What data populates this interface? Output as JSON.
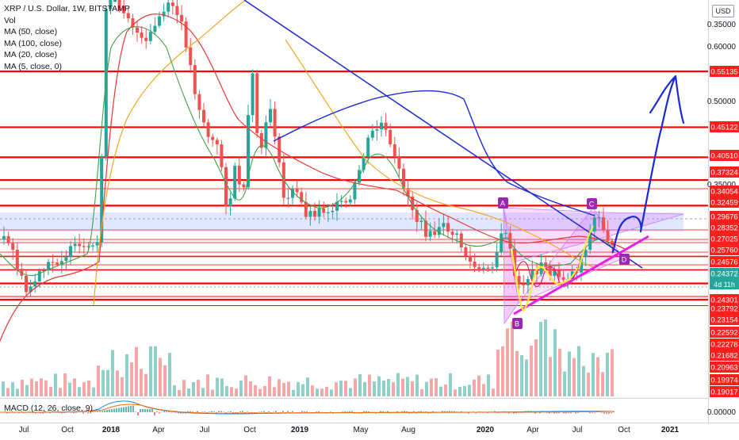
{
  "legend": {
    "title": "XRP / U.S. Dollar, 1W, BITSTAMP",
    "vol": "Vol",
    "ma50": "MA (50, close)",
    "ma100": "MA (100, close)",
    "ma20": "MA (20, close)",
    "ma5": "MA (5, close, 0)",
    "macd": "MACD (12, 26, close, 9)"
  },
  "currency_button": "USD",
  "colors": {
    "up": "#26a69a",
    "down": "#ef5350",
    "ma50": "#e53935",
    "ma100": "#f5a623",
    "ma20": "#43a047",
    "ma5": "#d81b60",
    "annotation_blue": "#1a2bd1",
    "resistance_red": "#ff0000",
    "pattern_purple": "#9c27b0",
    "label_red_bg": "#ff1e1e",
    "label_green_bg": "#26a69a"
  },
  "chart_data": {
    "type": "candlestick",
    "symbol": "XRP / U.S. Dollar",
    "interval": "1W",
    "exchange": "BITSTAMP",
    "x_axis_labels": [
      "Jul",
      "Oct",
      "2018",
      "Apr",
      "Jul",
      "Oct",
      "2019",
      "May",
      "Aug",
      "2020",
      "Apr",
      "Jul",
      "Oct",
      "2021"
    ],
    "y_axis_ticks": [
      "0.60000",
      "0.50000",
      "0.35000",
      "0.00000"
    ],
    "y_axis_scale": "log",
    "y_visible_range": [
      0.18,
      0.66
    ],
    "price_levels": [
      "0.55135",
      "0.45122",
      "0.40510",
      "0.37324",
      "0.34054",
      "0.32459",
      "0.29676",
      "0.28352",
      "0.27025",
      "0.25760",
      "0.24576",
      "0.24372",
      "0.24301",
      "0.23792",
      "0.23154",
      "0.22592",
      "0.22278",
      "0.21682",
      "0.20963",
      "0.19974",
      "0.19017"
    ],
    "countdown": "4d 11h",
    "current_price": "0.24372",
    "harmonic_points": [
      "A",
      "B",
      "C",
      "D"
    ],
    "macd_zero_label": "0.00000"
  }
}
